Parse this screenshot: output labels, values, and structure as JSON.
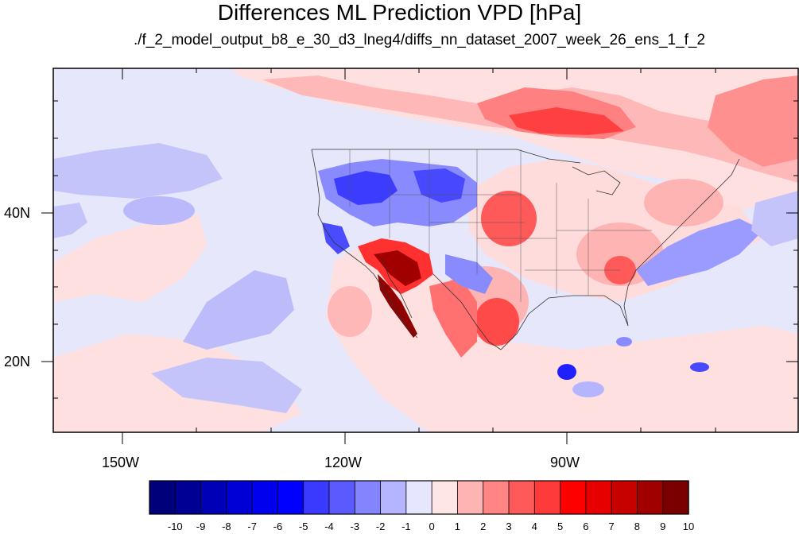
{
  "title": "Differences ML Prediction VPD [hPa]",
  "subtitle": "./f_2_model_output_b8_e_30_d3_lneg4/diffs_nn_dataset_2007_week_26_ens_1_f_2",
  "lat_labels": [
    "40N",
    "20N"
  ],
  "lon_labels": [
    "150W",
    "120W",
    "90W"
  ],
  "colorbar": {
    "labels": [
      "-10",
      "-9",
      "-8",
      "-7",
      "-6",
      "-5",
      "-4",
      "-3",
      "-2",
      "-1",
      "0",
      "1",
      "2",
      "3",
      "4",
      "5",
      "6",
      "7",
      "8",
      "9",
      "10"
    ],
    "colors": [
      "#00007a",
      "#000095",
      "#0000b6",
      "#0000d6",
      "#0000ee",
      "#0000ff",
      "#3a3aff",
      "#5a5aff",
      "#8484ff",
      "#b4b4ff",
      "#e6e6ff",
      "#ffe6e6",
      "#ffb4b4",
      "#ff8484",
      "#ff5a5a",
      "#ff3a3a",
      "#ff0000",
      "#e60000",
      "#c70000",
      "#a00000",
      "#7a0000"
    ]
  },
  "colors": {
    "ocean_neutral": "#e7e7fb",
    "frame": "#000000"
  }
}
